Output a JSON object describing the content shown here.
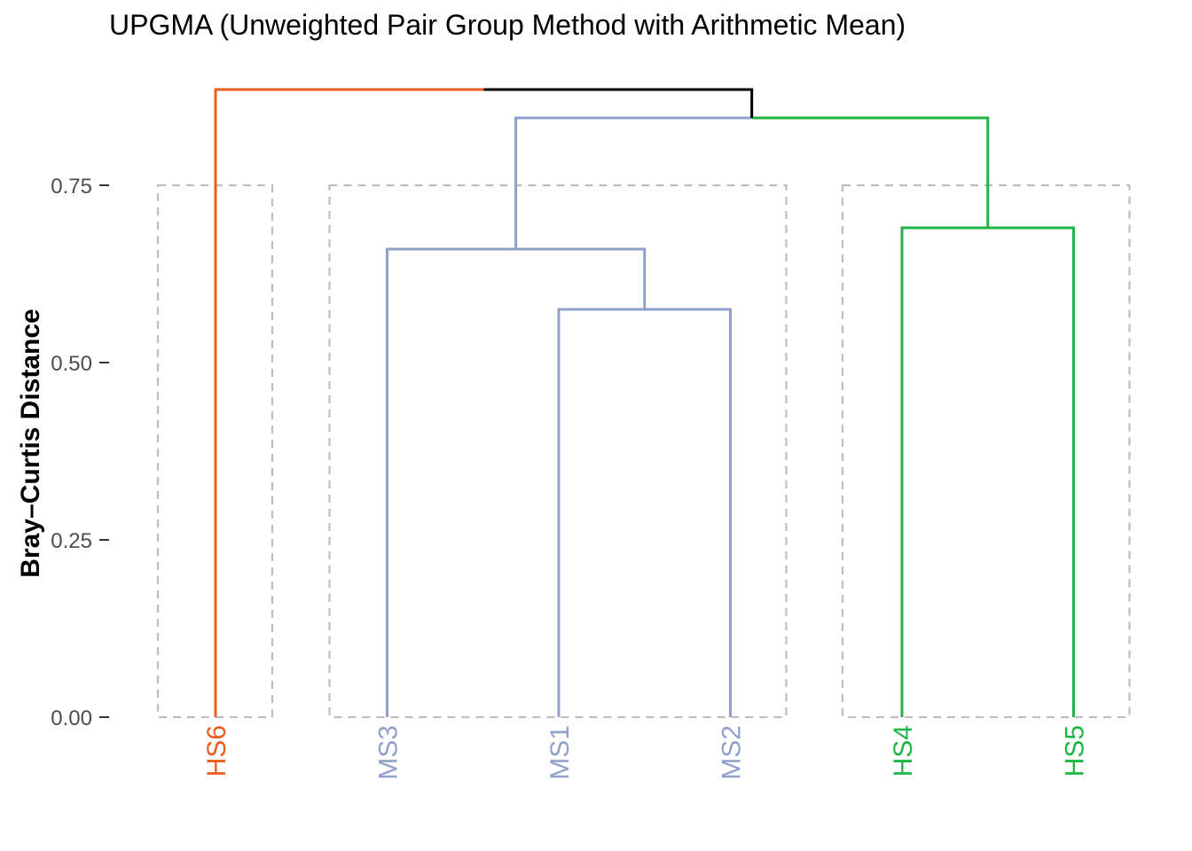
{
  "chart_data": {
    "type": "dendrogram",
    "title": "UPGMA (Unweighted Pair Group Method with Arithmetic Mean)",
    "ylabel": "Bray–Curtis Distance",
    "xlabel": "",
    "ylim": [
      0,
      0.88
    ],
    "yticks": [
      0.0,
      0.25,
      0.5,
      0.75
    ],
    "ytick_labels": [
      "0.00",
      "0.25",
      "0.50",
      "0.75"
    ],
    "grid": false,
    "leaves": [
      {
        "label": "HS6",
        "color": "#F05A1E"
      },
      {
        "label": "MS3",
        "color": "#8FA0CB"
      },
      {
        "label": "MS1",
        "color": "#8FA0CB"
      },
      {
        "label": "MS2",
        "color": "#8FA0CB"
      },
      {
        "label": "HS4",
        "color": "#1DB644"
      },
      {
        "label": "HS5",
        "color": "#1DB644"
      }
    ],
    "merges": [
      {
        "left": "MS1",
        "right": "MS2",
        "height": 0.575,
        "color": "#8FA0CB"
      },
      {
        "left": "MS3",
        "right": "MS1+MS2",
        "height": 0.66,
        "color": "#8FA0CB"
      },
      {
        "left": "HS4",
        "right": "HS5",
        "height": 0.69,
        "color": "#1DB644"
      },
      {
        "left": "MS3+MS1+MS2",
        "right": "HS4+HS5",
        "height": 0.845,
        "color": "#8FA0CB",
        "right_color": "#1DB644"
      },
      {
        "left": "HS6",
        "right": "MS3+MS1+MS2+HS4+HS5",
        "height": 0.885,
        "color": "#F05A1E",
        "right_color": "#000000"
      }
    ],
    "clusters": [
      {
        "members": [
          "HS6"
        ],
        "height": 0.75
      },
      {
        "members": [
          "MS3",
          "MS1",
          "MS2"
        ],
        "height": 0.75
      },
      {
        "members": [
          "HS4",
          "HS5"
        ],
        "height": 0.75
      }
    ],
    "colors": {
      "HS6": "#F05A1E",
      "MS": "#8FA0CB",
      "HS": "#1DB644",
      "root": "#000000",
      "cluster_box": "#BEBEBE"
    }
  }
}
